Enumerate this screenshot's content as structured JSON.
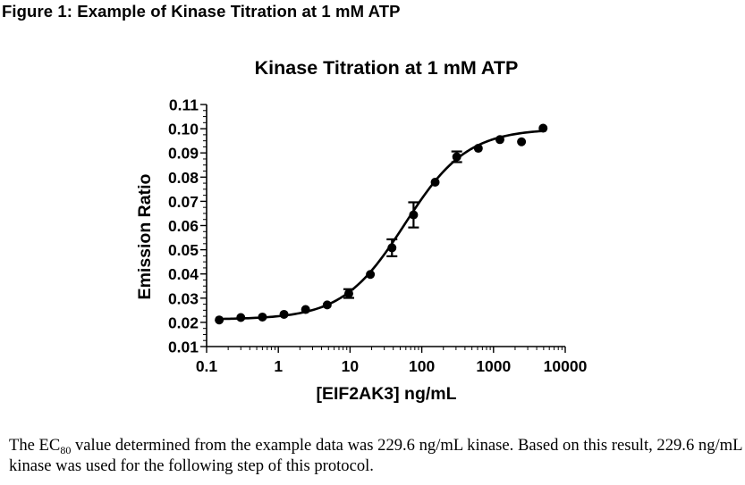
{
  "figure_title": "Figure 1: Example of Kinase Titration at 1 mM ATP",
  "caption": {
    "part1": "The EC",
    "subscript": "80",
    "part2": " value determined from the example data was 229.6 ng/mL kinase.  Based on this result, 229.6 ng/mL kinase was used for the following step of this protocol."
  },
  "chart_data": {
    "type": "scatter",
    "title": "Kinase Titration at 1 mM ATP",
    "xlabel": "[EIF2AK3] ng/mL",
    "ylabel": "Emission Ratio",
    "xscale": "log",
    "xlim": [
      0.1,
      10000
    ],
    "ylim": [
      0.01,
      0.11
    ],
    "x_ticks": [
      {
        "value": 0.1,
        "label": "0.1"
      },
      {
        "value": 1,
        "label": "1"
      },
      {
        "value": 10,
        "label": "10"
      },
      {
        "value": 100,
        "label": "100"
      },
      {
        "value": 1000,
        "label": "1000"
      },
      {
        "value": 10000,
        "label": "10000"
      }
    ],
    "y_ticks": [
      {
        "value": 0.01,
        "label": "0.01"
      },
      {
        "value": 0.02,
        "label": "0.02"
      },
      {
        "value": 0.03,
        "label": "0.03"
      },
      {
        "value": 0.04,
        "label": "0.04"
      },
      {
        "value": 0.05,
        "label": "0.05"
      },
      {
        "value": 0.06,
        "label": "0.06"
      },
      {
        "value": 0.07,
        "label": "0.07"
      },
      {
        "value": 0.08,
        "label": "0.08"
      },
      {
        "value": 0.09,
        "label": "0.09"
      },
      {
        "value": 0.1,
        "label": "0.10"
      },
      {
        "value": 0.11,
        "label": "0.11"
      }
    ],
    "points": [
      {
        "x": 0.15,
        "y": 0.021,
        "err": 0
      },
      {
        "x": 0.3,
        "y": 0.022,
        "err": 0
      },
      {
        "x": 0.6,
        "y": 0.0222,
        "err": 0
      },
      {
        "x": 1.2,
        "y": 0.0233,
        "err": 0
      },
      {
        "x": 2.4,
        "y": 0.0253,
        "err": 0
      },
      {
        "x": 4.8,
        "y": 0.0272,
        "err": 0
      },
      {
        "x": 9.6,
        "y": 0.0319,
        "err": 0.0018
      },
      {
        "x": 19.2,
        "y": 0.0398,
        "err": 0
      },
      {
        "x": 38.4,
        "y": 0.0508,
        "err": 0.0035
      },
      {
        "x": 76.8,
        "y": 0.0644,
        "err": 0.0052
      },
      {
        "x": 153.6,
        "y": 0.0779,
        "err": 0
      },
      {
        "x": 307.2,
        "y": 0.0884,
        "err": 0.0022
      },
      {
        "x": 614.4,
        "y": 0.0919,
        "err": 0
      },
      {
        "x": 1228.8,
        "y": 0.0955,
        "err": 0
      },
      {
        "x": 2457.6,
        "y": 0.0946,
        "err": 0
      },
      {
        "x": 4915.2,
        "y": 0.1002,
        "err": 0
      }
    ],
    "fit": {
      "bottom": 0.0212,
      "top": 0.1,
      "ec50": 58,
      "hill": 1.0
    }
  }
}
